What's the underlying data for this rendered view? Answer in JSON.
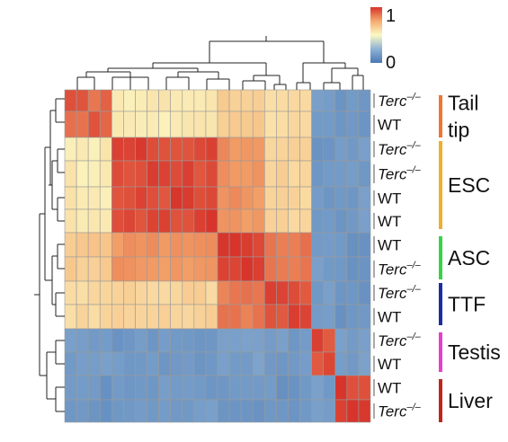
{
  "chart_data": {
    "type": "heatmap",
    "title": "",
    "color_scale": {
      "min": 0,
      "max": 1,
      "min_label": "0",
      "max_label": "1",
      "colors": [
        "#4a78b4",
        "#8fb2d4",
        "#fbf9c4",
        "#f5ab6e",
        "#d7342b"
      ]
    },
    "rows": [
      {
        "label": "Terc",
        "sup": "–/–",
        "group": "Tail tip"
      },
      {
        "label": "WT",
        "sup": "",
        "group": "Tail tip"
      },
      {
        "label": "Terc",
        "sup": "–/–",
        "group": "ESC"
      },
      {
        "label": "Terc",
        "sup": "–/–",
        "group": "ESC"
      },
      {
        "label": "WT",
        "sup": "",
        "group": "ESC"
      },
      {
        "label": "WT",
        "sup": "",
        "group": "ESC"
      },
      {
        "label": "WT",
        "sup": "",
        "group": "ASC"
      },
      {
        "label": "Terc",
        "sup": "–/–",
        "group": "ASC"
      },
      {
        "label": "Terc",
        "sup": "–/–",
        "group": "TTF"
      },
      {
        "label": "WT",
        "sup": "",
        "group": "TTF"
      },
      {
        "label": "Terc",
        "sup": "–/–",
        "group": "Testis"
      },
      {
        "label": "WT",
        "sup": "",
        "group": "Testis"
      },
      {
        "label": "WT",
        "sup": "",
        "group": "Liver"
      },
      {
        "label": "Terc",
        "sup": "–/–",
        "group": "Liver"
      }
    ],
    "groups": [
      {
        "name": "Tail tip",
        "lines": [
          "Tail",
          "tip"
        ],
        "color": "#f0752f"
      },
      {
        "name": "ESC",
        "lines": [
          "ESC"
        ],
        "color": "#efae2c"
      },
      {
        "name": "ASC",
        "lines": [
          "ASC"
        ],
        "color": "#35d447"
      },
      {
        "name": "TTF",
        "lines": [
          "TTF"
        ],
        "color": "#1a2ea0"
      },
      {
        "name": "Testis",
        "lines": [
          "Testis"
        ],
        "color": "#e43fcf"
      },
      {
        "name": "Liver",
        "lines": [
          "Liver"
        ],
        "color": "#c0241d"
      }
    ],
    "group_similarity": {
      "order": [
        "Tail tip",
        "ESC",
        "ASC",
        "TTF",
        "Testis",
        "Liver"
      ],
      "matrix": [
        [
          0.88,
          0.55,
          0.65,
          0.6,
          0.16,
          0.13
        ],
        [
          0.55,
          0.95,
          0.8,
          0.62,
          0.14,
          0.15
        ],
        [
          0.65,
          0.8,
          0.96,
          0.85,
          0.17,
          0.13
        ],
        [
          0.6,
          0.62,
          0.85,
          0.93,
          0.15,
          0.13
        ],
        [
          0.16,
          0.14,
          0.17,
          0.15,
          0.94,
          0.16
        ],
        [
          0.13,
          0.15,
          0.13,
          0.13,
          0.16,
          0.95
        ]
      ]
    },
    "grid": true,
    "legend_position": "top-right",
    "dendrograms": [
      "left",
      "top"
    ]
  }
}
